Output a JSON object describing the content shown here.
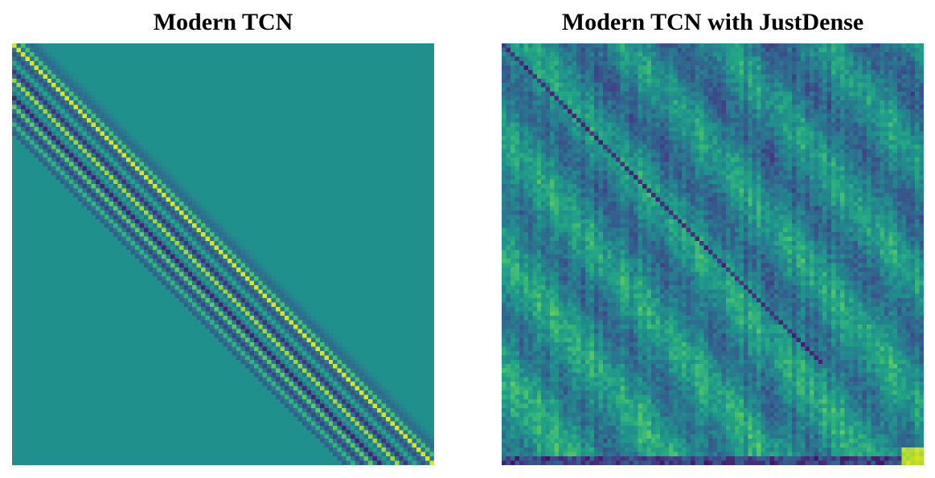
{
  "chart_data": [
    {
      "type": "heatmap",
      "title": "Modern TCN",
      "xlabel": "",
      "ylabel": "",
      "colormap": "viridis",
      "grid": false,
      "legend": "none",
      "description_values": {
        "background_value": 0.5,
        "pattern": "banded diagonal",
        "band_offsets": [
          -20,
          -18,
          -16,
          -14,
          -12,
          -10,
          -8,
          -6,
          -4,
          -2,
          0,
          2,
          4,
          6
        ],
        "band_values": [
          0.3,
          0.65,
          0.2,
          0.75,
          0.1,
          0.55,
          0.85,
          0.15,
          0.6,
          0.25,
          0.95,
          0.7,
          0.35,
          0.45
        ]
      },
      "matrix_size": 96
    },
    {
      "type": "heatmap",
      "title": "Modern TCN with JustDense",
      "xlabel": "",
      "ylabel": "",
      "colormap": "viridis",
      "grid": false,
      "legend": "none",
      "description_values": {
        "background_value": 0.45,
        "pattern": "noisy dense with dark main diagonal and periodic diagonal stripes",
        "diagonal_value": 0.08,
        "bottom_row_value": 0.05,
        "bottom_right_value": 0.95
      },
      "matrix_size": 96
    }
  ],
  "colors": {
    "background": "#ffffff",
    "title": "#000000"
  }
}
